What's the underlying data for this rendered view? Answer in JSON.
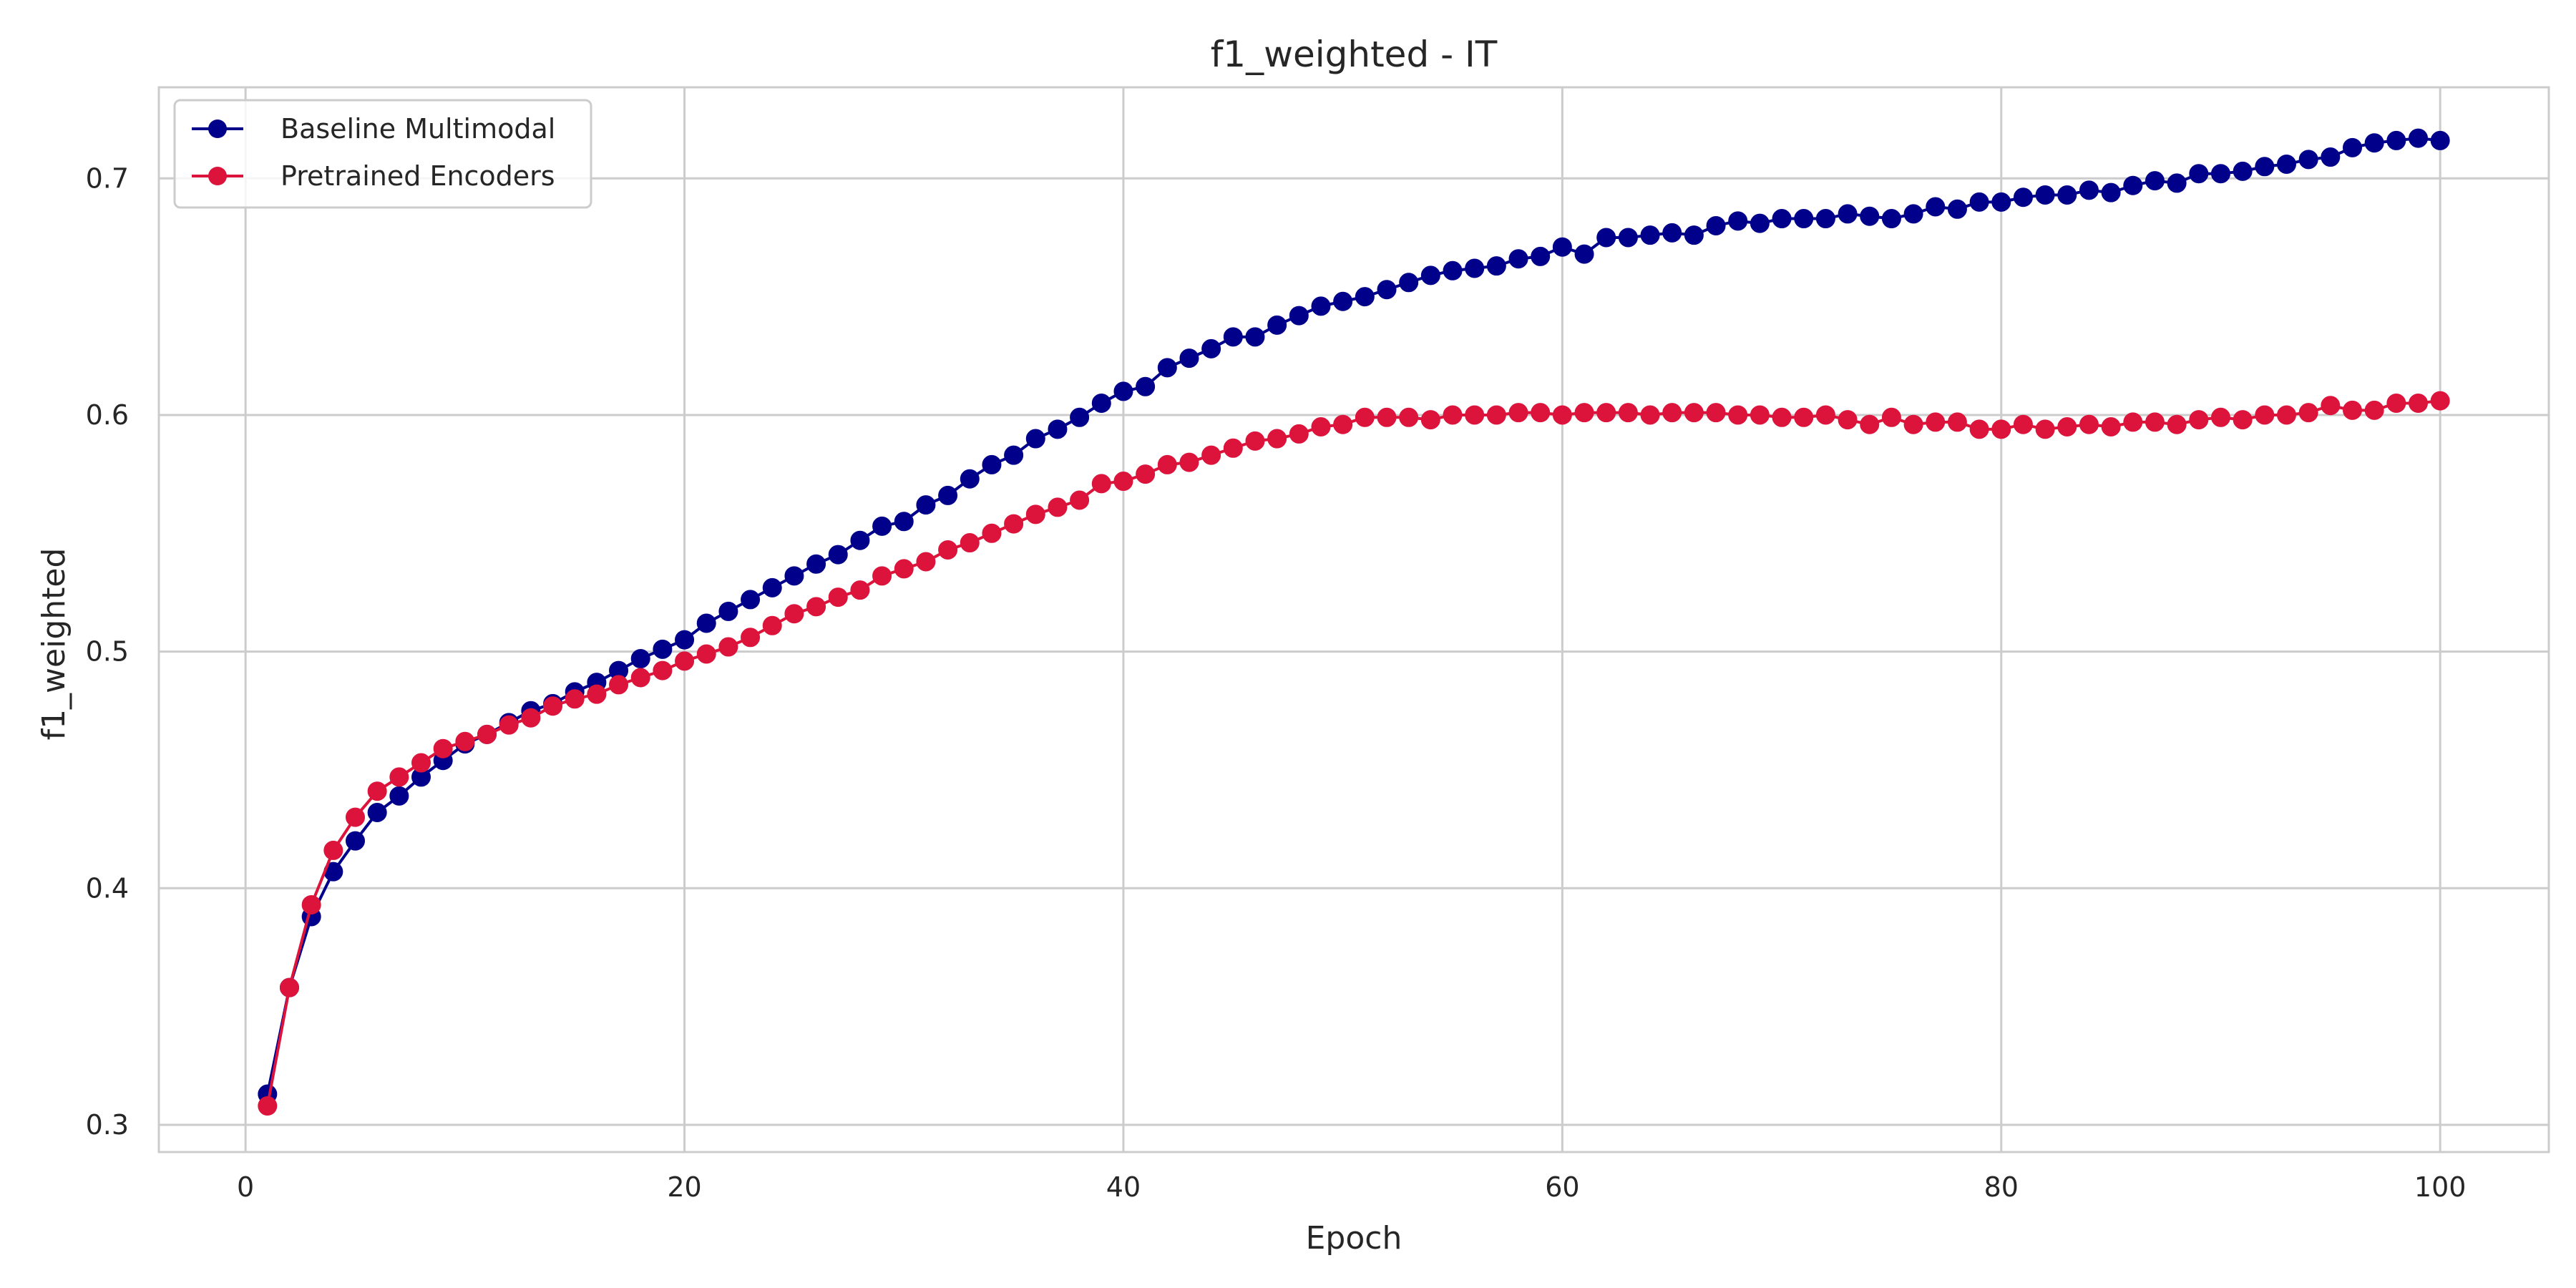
{
  "chart_data": {
    "type": "line",
    "title": "f1_weighted - IT",
    "xlabel": "Epoch",
    "ylabel": "f1_weighted",
    "xlim": [
      -3.95,
      104.95
    ],
    "ylim": [
      0.2885,
      0.7385
    ],
    "xticks": [
      0,
      20,
      40,
      60,
      80,
      100
    ],
    "yticks": [
      0.3,
      0.4,
      0.5,
      0.6,
      0.7
    ],
    "xtick_labels": [
      "0",
      "20",
      "40",
      "60",
      "80",
      "100"
    ],
    "ytick_labels": [
      "0.3",
      "0.4",
      "0.5",
      "0.6",
      "0.7"
    ],
    "grid": true,
    "legend_position": "top-left",
    "x": [
      1,
      2,
      3,
      4,
      5,
      6,
      7,
      8,
      9,
      10,
      11,
      12,
      13,
      14,
      15,
      16,
      17,
      18,
      19,
      20,
      21,
      22,
      23,
      24,
      25,
      26,
      27,
      28,
      29,
      30,
      31,
      32,
      33,
      34,
      35,
      36,
      37,
      38,
      39,
      40,
      41,
      42,
      43,
      44,
      45,
      46,
      47,
      48,
      49,
      50,
      51,
      52,
      53,
      54,
      55,
      56,
      57,
      58,
      59,
      60,
      61,
      62,
      63,
      64,
      65,
      66,
      67,
      68,
      69,
      70,
      71,
      72,
      73,
      74,
      75,
      76,
      77,
      78,
      79,
      80,
      81,
      82,
      83,
      84,
      85,
      86,
      87,
      88,
      89,
      90,
      91,
      92,
      93,
      94,
      95,
      96,
      97,
      98,
      99,
      100
    ],
    "series": [
      {
        "name": "Baseline Multimodal",
        "color": "#00008b",
        "marker": "circle",
        "values": [
          0.313,
          0.358,
          0.388,
          0.407,
          0.42,
          0.432,
          0.439,
          0.447,
          0.454,
          0.461,
          0.465,
          0.47,
          0.475,
          0.478,
          0.483,
          0.487,
          0.492,
          0.497,
          0.501,
          0.505,
          0.512,
          0.517,
          0.522,
          0.527,
          0.532,
          0.537,
          0.541,
          0.547,
          0.553,
          0.555,
          0.562,
          0.566,
          0.573,
          0.579,
          0.583,
          0.59,
          0.594,
          0.599,
          0.605,
          0.61,
          0.612,
          0.62,
          0.624,
          0.628,
          0.633,
          0.633,
          0.638,
          0.642,
          0.646,
          0.648,
          0.65,
          0.653,
          0.656,
          0.659,
          0.661,
          0.662,
          0.663,
          0.666,
          0.667,
          0.671,
          0.668,
          0.675,
          0.675,
          0.676,
          0.677,
          0.676,
          0.68,
          0.682,
          0.681,
          0.683,
          0.683,
          0.683,
          0.685,
          0.684,
          0.683,
          0.685,
          0.688,
          0.687,
          0.69,
          0.69,
          0.692,
          0.693,
          0.693,
          0.695,
          0.694,
          0.697,
          0.699,
          0.698,
          0.702,
          0.702,
          0.703,
          0.705,
          0.706,
          0.708,
          0.709,
          0.713,
          0.715,
          0.716,
          0.717,
          0.716
        ]
      },
      {
        "name": "Pretrained Encoders",
        "color": "#dc143c",
        "marker": "circle",
        "values": [
          0.308,
          0.358,
          0.393,
          0.416,
          0.43,
          0.441,
          0.447,
          0.453,
          0.459,
          0.462,
          0.465,
          0.469,
          0.472,
          0.477,
          0.48,
          0.482,
          0.486,
          0.489,
          0.492,
          0.496,
          0.499,
          0.502,
          0.506,
          0.511,
          0.516,
          0.519,
          0.523,
          0.526,
          0.532,
          0.535,
          0.538,
          0.543,
          0.546,
          0.55,
          0.554,
          0.558,
          0.561,
          0.564,
          0.571,
          0.572,
          0.575,
          0.579,
          0.58,
          0.583,
          0.586,
          0.589,
          0.59,
          0.592,
          0.595,
          0.596,
          0.599,
          0.599,
          0.599,
          0.598,
          0.6,
          0.6,
          0.6,
          0.601,
          0.601,
          0.6,
          0.601,
          0.601,
          0.601,
          0.6,
          0.601,
          0.601,
          0.601,
          0.6,
          0.6,
          0.599,
          0.599,
          0.6,
          0.598,
          0.596,
          0.599,
          0.596,
          0.597,
          0.597,
          0.594,
          0.594,
          0.596,
          0.594,
          0.595,
          0.596,
          0.595,
          0.597,
          0.597,
          0.596,
          0.598,
          0.599,
          0.598,
          0.6,
          0.6,
          0.601,
          0.604,
          0.602,
          0.602,
          0.605,
          0.605,
          0.606
        ]
      }
    ]
  }
}
